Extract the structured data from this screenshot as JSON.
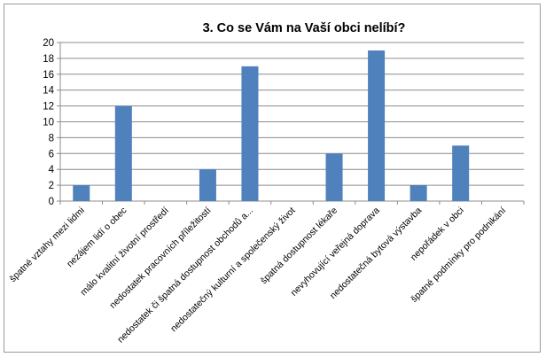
{
  "chart_data": {
    "type": "bar",
    "title": "3. Co se Vám na Vaší obci nelíbí?",
    "xlabel": "",
    "ylabel": "",
    "ylim": [
      0,
      20
    ],
    "yticks": [
      0,
      2,
      4,
      6,
      8,
      10,
      12,
      14,
      16,
      18,
      20
    ],
    "grid": true,
    "legend": "none",
    "bar_color": "#4F81BD",
    "categories": [
      "špatné vztahy mezi lidmi",
      "nezájem lidí o obec",
      "málo kvalitní životní prostředí",
      "nedostatek pracovních příležitostí",
      "nedostatek či špatná dostupnost obchodů a...",
      "nedostatečný kulturní a společenský život",
      "špatná dostupnost lékaře",
      "nevyhovující veřejná doprava",
      "nedostatečná bytová výstavba",
      "nepořádek v obci",
      "špatné podmínky pro podnikání"
    ],
    "values": [
      2,
      12,
      0,
      4,
      17,
      0,
      6,
      19,
      2,
      7,
      0
    ]
  }
}
